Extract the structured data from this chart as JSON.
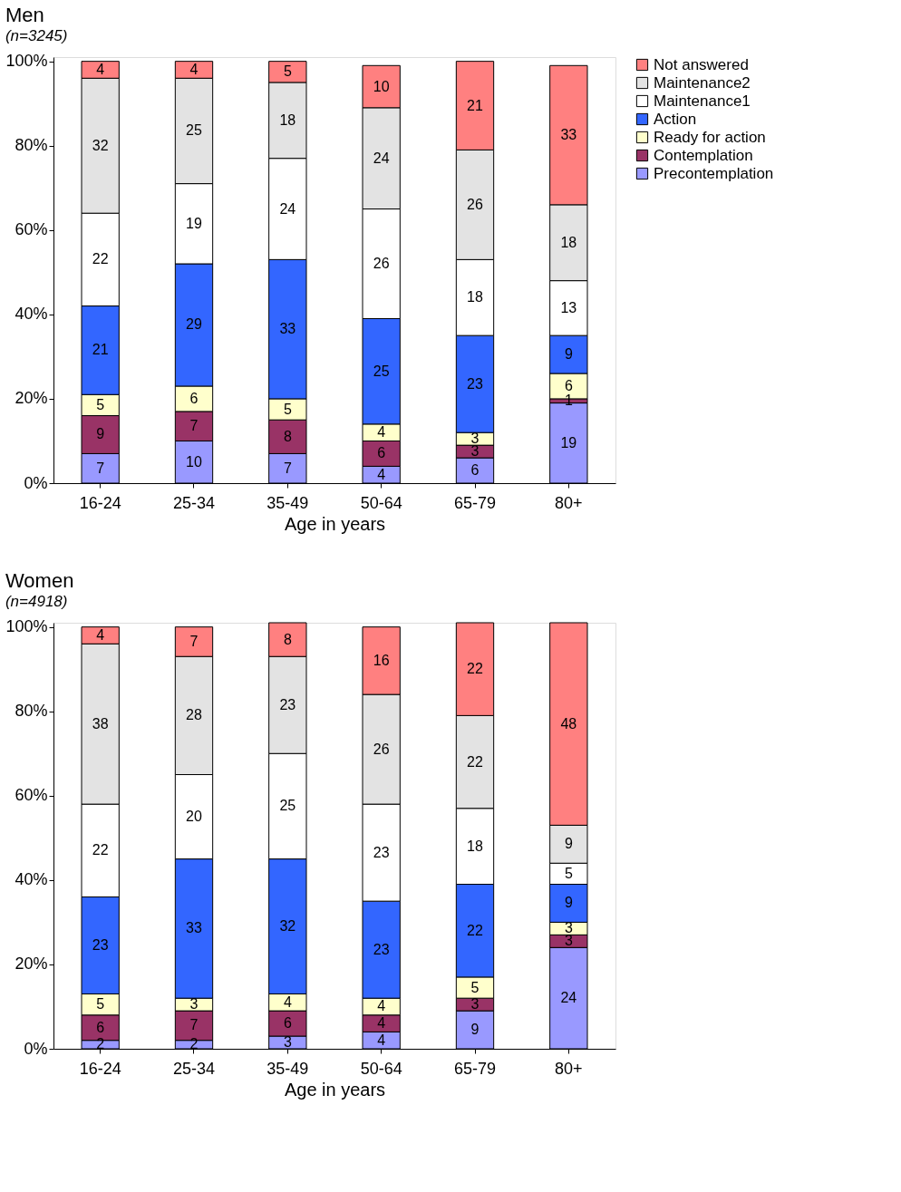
{
  "chart_data": [
    {
      "type": "bar",
      "title": "Men",
      "subtitle": "(n=3245)",
      "xlabel": "Age in years",
      "stacked": true,
      "data_labels": true,
      "legend": "right",
      "grid": false,
      "categories": [
        "16-24",
        "25-34",
        "35-49",
        "50-64",
        "65-79",
        "80+"
      ],
      "ylim": [
        0,
        101
      ],
      "yticks": [
        {
          "value": 0,
          "label": "0%"
        },
        {
          "value": 20,
          "label": "20%"
        },
        {
          "value": 40,
          "label": "40%"
        },
        {
          "value": 60,
          "label": "60%"
        },
        {
          "value": 80,
          "label": "80%"
        },
        {
          "value": 100,
          "label": "100%"
        }
      ],
      "series": [
        {
          "name": "Precontemplation",
          "color": "#9999ff",
          "values": [
            7,
            10,
            7,
            4,
            6,
            19
          ]
        },
        {
          "name": "Contemplation",
          "color": "#993366",
          "values": [
            9,
            7,
            8,
            6,
            3,
            1
          ]
        },
        {
          "name": "Ready for action",
          "color": "#ffffcc",
          "values": [
            5,
            6,
            5,
            4,
            3,
            6
          ]
        },
        {
          "name": "Action",
          "color": "#3366ff",
          "values": [
            21,
            29,
            33,
            25,
            23,
            9
          ]
        },
        {
          "name": "Maintenance1",
          "color": "#ffffff",
          "values": [
            22,
            19,
            24,
            26,
            18,
            13
          ]
        },
        {
          "name": "Maintenance2",
          "color": "#e3e3e3",
          "values": [
            32,
            25,
            18,
            24,
            26,
            18
          ]
        },
        {
          "name": "Not answered",
          "color": "#ff8080",
          "values": [
            4,
            4,
            5,
            10,
            21,
            33
          ]
        }
      ]
    },
    {
      "type": "bar",
      "title": "Women",
      "subtitle": "(n=4918)",
      "xlabel": "Age in years",
      "stacked": true,
      "data_labels": true,
      "legend": "right",
      "grid": false,
      "categories": [
        "16-24",
        "25-34",
        "35-49",
        "50-64",
        "65-79",
        "80+"
      ],
      "ylim": [
        0,
        101
      ],
      "yticks": [
        {
          "value": 0,
          "label": "0%"
        },
        {
          "value": 20,
          "label": "20%"
        },
        {
          "value": 40,
          "label": "40%"
        },
        {
          "value": 60,
          "label": "60%"
        },
        {
          "value": 80,
          "label": "80%"
        },
        {
          "value": 100,
          "label": "100%"
        }
      ],
      "series": [
        {
          "name": "Precontemplation",
          "color": "#9999ff",
          "values": [
            2,
            2,
            3,
            4,
            9,
            24
          ]
        },
        {
          "name": "Contemplation",
          "color": "#993366",
          "values": [
            6,
            7,
            6,
            4,
            3,
            3
          ]
        },
        {
          "name": "Ready for action",
          "color": "#ffffcc",
          "values": [
            5,
            3,
            4,
            4,
            5,
            3
          ]
        },
        {
          "name": "Action",
          "color": "#3366ff",
          "values": [
            23,
            33,
            32,
            23,
            22,
            9
          ]
        },
        {
          "name": "Maintenance1",
          "color": "#ffffff",
          "values": [
            22,
            20,
            25,
            23,
            18,
            5
          ]
        },
        {
          "name": "Maintenance2",
          "color": "#e3e3e3",
          "values": [
            38,
            28,
            23,
            26,
            22,
            9
          ]
        },
        {
          "name": "Not answered",
          "color": "#ff8080",
          "values": [
            4,
            7,
            8,
            16,
            22,
            48
          ]
        }
      ]
    }
  ]
}
